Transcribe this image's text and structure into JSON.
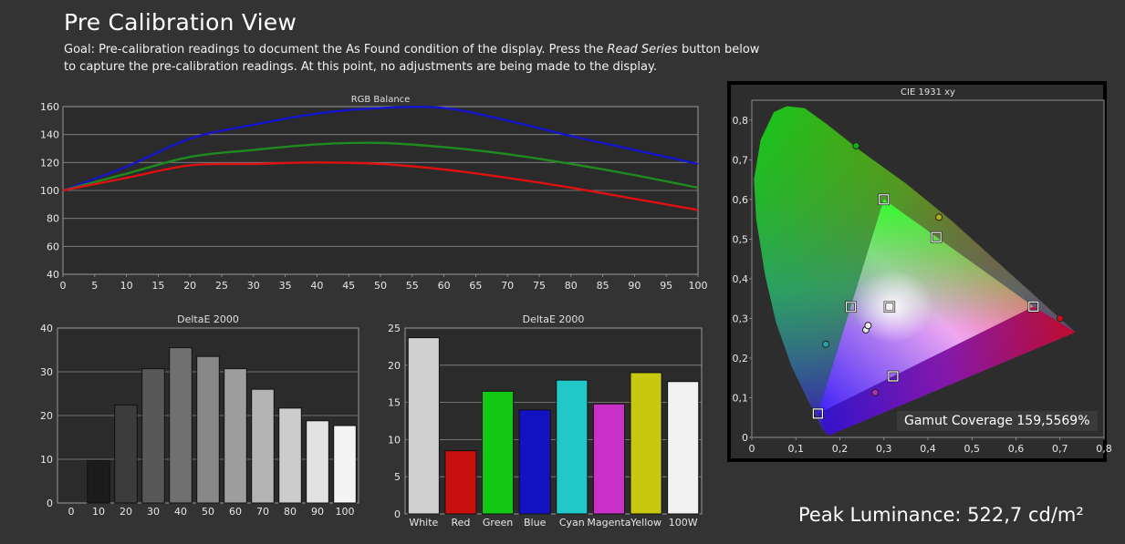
{
  "page": {
    "title": "Pre Calibration View",
    "goal_prefix": "Goal: Pre-calibration readings to document the As Found condition of the display. Press the ",
    "goal_emphasis": "Read Series",
    "goal_suffix": " button below to capture the pre-calibration readings. At this point, no adjustments are being made to the display.",
    "peak_luminance": "Peak Luminance: 522,7 cd/m²",
    "gamut_coverage": "Gamut Coverage 159,5569%"
  },
  "colors": {
    "background": "#333333",
    "panel": "#2d2d2d",
    "red": "#dd1111",
    "green": "#1f8a1f",
    "blue": "#1414cc"
  },
  "chart_data": [
    {
      "type": "line",
      "title": "RGB Balance",
      "x": [
        0,
        10,
        20,
        30,
        40,
        50,
        60,
        70,
        80,
        90,
        100
      ],
      "xticks": [
        "0",
        "5",
        "10",
        "15",
        "20",
        "25",
        "30",
        "35",
        "40",
        "45",
        "50",
        "55",
        "60",
        "65",
        "70",
        "75",
        "80",
        "85",
        "90",
        "95",
        "100"
      ],
      "yticks": [
        "40",
        "60",
        "80",
        "100",
        "120",
        "140",
        "160"
      ],
      "ylim": [
        40,
        160
      ],
      "xlim": [
        0,
        100
      ],
      "grid": true,
      "series": [
        {
          "color": "#1414cc",
          "values": [
            100,
            117,
            137,
            147,
            155,
            159,
            159,
            150,
            139,
            129,
            119
          ]
        },
        {
          "color": "#1f8a1f",
          "values": [
            100,
            112,
            124,
            129,
            133,
            134,
            131,
            126,
            119,
            111,
            102
          ]
        },
        {
          "color": "#dd1111",
          "values": [
            100,
            109,
            118,
            119,
            120,
            119,
            115,
            109,
            102,
            94,
            86
          ]
        }
      ]
    },
    {
      "type": "bar",
      "title": "DeltaE 2000",
      "categories": [
        "0",
        "10",
        "20",
        "30",
        "40",
        "50",
        "60",
        "70",
        "80",
        "90",
        "100"
      ],
      "values": [
        0,
        9.7,
        22.4,
        30.7,
        35.5,
        33.5,
        30.7,
        26,
        21.7,
        18.8,
        17.7
      ],
      "colors": [
        "#000000",
        "#1c1c1c",
        "#3c3c3c",
        "#585858",
        "#707070",
        "#888888",
        "#9e9e9e",
        "#b4b4b4",
        "#cccccc",
        "#e2e2e2",
        "#f4f4f4"
      ],
      "yticks": [
        "0",
        "10",
        "20",
        "30",
        "40"
      ],
      "ylim": [
        0,
        40
      ],
      "grid": true
    },
    {
      "type": "bar",
      "title": "DeltaE 2000",
      "categories": [
        "White",
        "Red",
        "Green",
        "Blue",
        "Cyan",
        "Magenta",
        "Yellow",
        "100W"
      ],
      "values": [
        23.7,
        8.5,
        16.5,
        14,
        18,
        14.8,
        19,
        17.8
      ],
      "colors": [
        "#d0d0d0",
        "#c81010",
        "#12c812",
        "#1212c0",
        "#20c8c8",
        "#c830c8",
        "#c8c810",
        "#f2f2f2"
      ],
      "yticks": [
        "0",
        "5",
        "10",
        "15",
        "20",
        "25"
      ],
      "ylim": [
        0,
        25
      ],
      "grid": true
    },
    {
      "type": "scatter",
      "title": "CIE 1931 xy",
      "xticks": [
        "0",
        "0,1",
        "0,2",
        "0,3",
        "0,4",
        "0,5",
        "0,6",
        "0,7",
        "0,8"
      ],
      "yticks": [
        "0",
        "0,1",
        "0,2",
        "0,3",
        "0,4",
        "0,5",
        "0,6",
        "0,7",
        "0,8"
      ],
      "xlim": [
        0,
        0.8
      ],
      "ylim": [
        0,
        0.85
      ],
      "targets": [
        {
          "x": 0.64,
          "y": 0.33
        },
        {
          "x": 0.3,
          "y": 0.6
        },
        {
          "x": 0.15,
          "y": 0.06
        },
        {
          "x": 0.225,
          "y": 0.329
        },
        {
          "x": 0.321,
          "y": 0.154
        },
        {
          "x": 0.419,
          "y": 0.505
        },
        {
          "x": 0.3127,
          "y": 0.329
        }
      ],
      "measured": [
        {
          "x": 0.7,
          "y": 0.3,
          "color": "#cc1010"
        },
        {
          "x": 0.237,
          "y": 0.735,
          "color": "#12b012"
        },
        {
          "x": 0.168,
          "y": 0.235,
          "color": "#20a8a8"
        },
        {
          "x": 0.28,
          "y": 0.113,
          "color": "#b030b0"
        },
        {
          "x": 0.425,
          "y": 0.555,
          "color": "#b0b010"
        },
        {
          "x": 0.259,
          "y": 0.271,
          "color": "#e8e8e8"
        },
        {
          "x": 0.264,
          "y": 0.282,
          "color": "#f4f4f4"
        }
      ]
    }
  ]
}
